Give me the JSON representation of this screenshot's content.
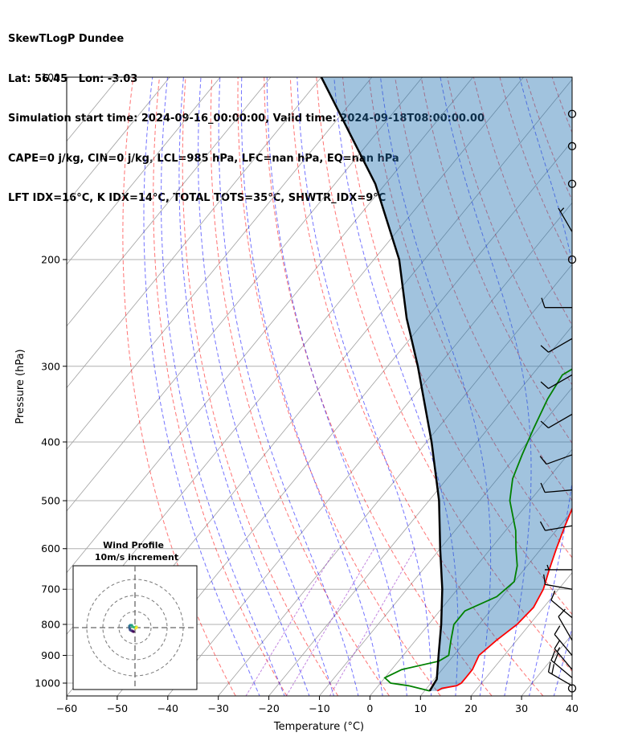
{
  "chart_data": {
    "type": "line",
    "title_lines": [
      "SkewTLogP Dundee",
      "Lat: 56.45   Lon: -3.03",
      "Simulation start time: 2024-09-16_00:00:00, Valid time: 2024-09-18T08:00:00.00",
      "CAPE=0 j/kg, CIN=0 j/kg, LCL=985 hPa, LFC=nan hPa, EQ=nan hPa",
      "LFT IDX=16°C, K IDX=14°C, TOTAL TOTS=35°C, SHWTR_IDX=9°C"
    ],
    "xlabel": "Temperature (°C)",
    "ylabel": "Pressure (hPa)",
    "xlim": [
      -60,
      40
    ],
    "plim": [
      1050,
      100
    ],
    "yscale": "log",
    "grid": true,
    "x_ticks": [
      -60,
      -50,
      -40,
      -30,
      -20,
      -10,
      0,
      10,
      20,
      30,
      40
    ],
    "p_ticks": [
      1000,
      900,
      800,
      700,
      600,
      500,
      400,
      300,
      200,
      100
    ],
    "series": [
      {
        "color": "#ff0000",
        "points": [
          [
            1030,
            12.5
          ],
          [
            1020,
            13
          ],
          [
            1010,
            15.5
          ],
          [
            1000,
            16
          ],
          [
            980,
            16
          ],
          [
            950,
            16
          ],
          [
            900,
            15
          ],
          [
            850,
            16
          ],
          [
            800,
            17.5
          ],
          [
            750,
            18
          ],
          [
            700,
            17
          ],
          [
            650,
            15
          ],
          [
            600,
            13
          ],
          [
            550,
            11
          ],
          [
            500,
            9
          ],
          [
            450,
            7
          ],
          [
            400,
            4
          ],
          [
            350,
            0
          ],
          [
            300,
            -4
          ],
          [
            280,
            -5.5
          ],
          [
            260,
            -6
          ],
          [
            240,
            -7.5
          ],
          [
            220,
            -10
          ],
          [
            200,
            -13
          ],
          [
            180,
            -16
          ],
          [
            170,
            -18
          ],
          [
            160,
            -19
          ],
          [
            150,
            -17.5
          ],
          [
            140,
            -16
          ],
          [
            130,
            -15
          ],
          [
            120,
            -13
          ],
          [
            110,
            -9
          ],
          [
            100,
            -5
          ]
        ]
      },
      {
        "color": "#008000",
        "points": [
          [
            1030,
            11
          ],
          [
            1010,
            6
          ],
          [
            1000,
            2
          ],
          [
            980,
            0
          ],
          [
            950,
            2
          ],
          [
            920,
            8
          ],
          [
            900,
            9
          ],
          [
            850,
            7
          ],
          [
            800,
            5
          ],
          [
            760,
            5
          ],
          [
            720,
            9
          ],
          [
            680,
            10
          ],
          [
            640,
            8
          ],
          [
            600,
            5
          ],
          [
            560,
            2
          ],
          [
            500,
            -4
          ],
          [
            460,
            -7
          ],
          [
            420,
            -9
          ],
          [
            380,
            -11
          ],
          [
            340,
            -13
          ],
          [
            310,
            -14
          ],
          [
            290,
            -11
          ],
          [
            270,
            -12
          ],
          [
            250,
            -16
          ],
          [
            230,
            -19
          ],
          [
            210,
            -21
          ],
          [
            190,
            -24
          ],
          [
            180,
            -25
          ],
          [
            165,
            -23
          ],
          [
            155,
            -25
          ],
          [
            150,
            -27
          ],
          [
            140,
            -22
          ],
          [
            130,
            -18
          ],
          [
            120,
            -15
          ],
          [
            110,
            -13
          ],
          [
            100,
            -11
          ]
        ]
      },
      {
        "name": "parcel",
        "color": "#000000",
        "points": [
          [
            1030,
            11
          ],
          [
            985,
            10.5
          ],
          [
            900,
            7
          ],
          [
            800,
            2.5
          ],
          [
            700,
            -3
          ],
          [
            600,
            -10
          ],
          [
            500,
            -18
          ],
          [
            400,
            -29
          ],
          [
            300,
            -44
          ],
          [
            250,
            -54
          ],
          [
            200,
            -65
          ],
          [
            150,
            -82
          ],
          [
            100,
            -110
          ]
        ]
      }
    ],
    "wind_barbs": [
      {
        "p": 1010,
        "speed_kt": 20,
        "dir": 300
      },
      {
        "p": 980,
        "speed_kt": 20,
        "dir": 310
      },
      {
        "p": 950,
        "speed_kt": 15,
        "dir": 320
      },
      {
        "p": 900,
        "speed_kt": 10,
        "dir": 320
      },
      {
        "p": 850,
        "speed_kt": 10,
        "dir": 330
      },
      {
        "p": 780,
        "speed_kt": 10,
        "dir": 310
      },
      {
        "p": 700,
        "speed_kt": 10,
        "dir": 280
      },
      {
        "p": 650,
        "speed_kt": 5,
        "dir": 270
      },
      {
        "p": 550,
        "speed_kt": 10,
        "dir": 260
      },
      {
        "p": 480,
        "speed_kt": 10,
        "dir": 265
      },
      {
        "p": 420,
        "speed_kt": 10,
        "dir": 250
      },
      {
        "p": 360,
        "speed_kt": 10,
        "dir": 240
      },
      {
        "p": 310,
        "speed_kt": 10,
        "dir": 240
      },
      {
        "p": 270,
        "speed_kt": 10,
        "dir": 240
      },
      {
        "p": 240,
        "speed_kt": 10,
        "dir": 270
      },
      {
        "p": 180,
        "speed_kt": 5,
        "dir": 330
      }
    ],
    "calm_levels": [
      200,
      150,
      130,
      115,
      1020
    ],
    "hodograph": {
      "title": "Wind Profile",
      "subtitle": "10m/s increment",
      "points": [
        [
          -1.5,
          -2
        ],
        [
          -1,
          -2.5
        ],
        [
          -2,
          -2
        ],
        [
          -3,
          -1.5
        ],
        [
          -3.5,
          0
        ],
        [
          -3.5,
          1
        ],
        [
          -3,
          1.5
        ],
        [
          -2,
          1.5
        ],
        [
          -1.5,
          0.5
        ],
        [
          0,
          0
        ],
        [
          0.5,
          0.5
        ],
        [
          1,
          0.5
        ],
        [
          1,
          0
        ],
        [
          0.5,
          -0.5
        ]
      ]
    }
  }
}
